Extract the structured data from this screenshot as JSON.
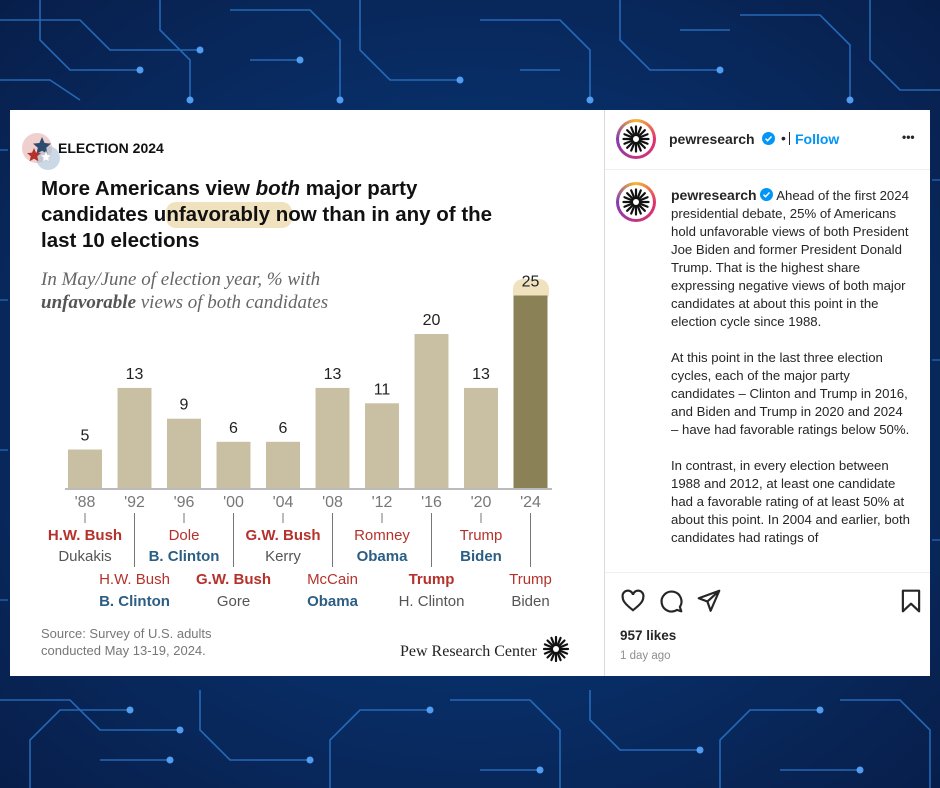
{
  "post": {
    "username": "pewresearch",
    "separator": "•",
    "follow_label": "Follow",
    "more_label": "•••",
    "caption_paragraphs": [
      "Ahead of the first 2024 presidential debate, 25% of Americans hold unfavorable views of both President Joe Biden and former President Donald Trump. That is the highest share expressing negative views of both major candidates at about this point in the election cycle since 1988.",
      "At this point in the last three election cycles, each of the major party candidates – Clinton and Trump in 2016, and Biden and Trump in 2020 and 2024 – have had favorable ratings below 50%.",
      "In contrast, in every election between 1988 and 2012, at least one candidate had a favorable rating of at least 50% at about this point. In 2004 and earlier, both candidates had ratings of"
    ],
    "likes": "957 likes",
    "time_ago": "1 day ago",
    "icons": [
      "heart-icon",
      "comment-icon",
      "share-icon",
      "bookmark-icon"
    ]
  },
  "graphic": {
    "eyebrow": "ELECTION 2024",
    "headline_line1_pre": "More Americans view ",
    "headline_line1_em": "both",
    "headline_line1_post": " major party",
    "headline_line2_pre": "candidates ",
    "headline_line2_hl": "unfavorably",
    "headline_line2_post": " now than in any of the",
    "headline_line3": "last 10 elections",
    "subtitle_line1": "In May/June of election year, % with",
    "subtitle_bold": "unfavorable",
    "subtitle_rest": " views of both candidates",
    "source_line1": "Source: Survey of U.S. adults",
    "source_line2": "conducted May 13-19, 2024.",
    "brand": "Pew Research Center"
  },
  "chart_data": {
    "type": "bar",
    "categories": [
      "'88",
      "'92",
      "'96",
      "'00",
      "'04",
      "'08",
      "'12",
      "'16",
      "'20",
      "'24"
    ],
    "values": [
      5,
      13,
      9,
      6,
      6,
      13,
      11,
      20,
      13,
      25
    ],
    "highlight_index": 9,
    "colors": {
      "bar": "#c9c0a4",
      "highlight": "#8a8256",
      "rep": "#b5322c",
      "dem": "#2c5e84",
      "other": "#555555"
    },
    "candidates": [
      {
        "rep": "H.W. Bush",
        "dem": "Dukakis",
        "winner": "rep"
      },
      {
        "rep": "H.W. Bush",
        "dem": "B. Clinton",
        "winner": "dem"
      },
      {
        "rep": "Dole",
        "dem": "B. Clinton",
        "winner": "dem"
      },
      {
        "rep": "G.W. Bush",
        "dem": "Gore",
        "winner": "rep"
      },
      {
        "rep": "G.W. Bush",
        "dem": "Kerry",
        "winner": "rep"
      },
      {
        "rep": "McCain",
        "dem": "Obama",
        "winner": "dem"
      },
      {
        "rep": "Romney",
        "dem": "Obama",
        "winner": "dem"
      },
      {
        "rep": "Trump",
        "dem": "H. Clinton",
        "winner": "rep"
      },
      {
        "rep": "Trump",
        "dem": "Biden",
        "winner": "dem"
      },
      {
        "rep": "Trump",
        "dem": "Biden",
        "winner": "none"
      }
    ]
  }
}
